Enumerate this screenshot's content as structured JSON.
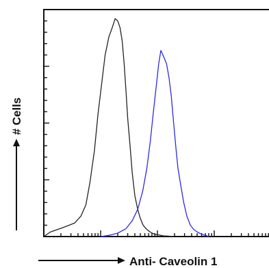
{
  "chart_data": {
    "type": "line",
    "title": "",
    "xlabel": "Anti- Caveolin 1",
    "ylabel": "# Cells",
    "x_scale": "log",
    "xlim": [
      1,
      10000
    ],
    "ylim": [
      0,
      100
    ],
    "grid": false,
    "legend": "none",
    "colors": {
      "axis": "#111111",
      "control": "#222222",
      "sample": "#2a2ae0"
    },
    "series": [
      {
        "color": "#222222",
        "x": [
          1.0,
          1.3,
          1.7,
          2.2,
          2.8,
          3.5,
          4.5,
          5.5,
          6.5,
          7.8,
          9.0,
          10.5,
          12.0,
          14.0,
          16.0,
          18.0,
          20.0,
          22.0,
          24.0,
          26.0,
          28.0,
          30.0,
          33.0,
          36.0,
          40.0,
          45.0,
          50.0,
          56.0,
          63.0,
          70.0,
          80.0,
          90.0,
          100.0,
          115.0,
          130.0,
          150.0,
          170.0,
          200.0
        ],
        "y": [
          0.0,
          2.0,
          3.0,
          4.0,
          5.0,
          6.0,
          9.0,
          14.0,
          24.0,
          38.0,
          54.0,
          68.0,
          80.0,
          88.0,
          92.0,
          96.0,
          95.0,
          92.0,
          86.0,
          76.0,
          64.0,
          52.0,
          40.0,
          28.0,
          18.0,
          12.0,
          8.0,
          5.0,
          3.5,
          2.5,
          1.5,
          1.0,
          0.8,
          0.5,
          0.3,
          0.2,
          0.1,
          0.0
        ]
      },
      {
        "color": "#2a2ae0",
        "x": [
          10.0,
          14.0,
          20.0,
          28.0,
          36.0,
          45.0,
          55.0,
          65.0,
          75.0,
          85.0,
          95.0,
          105.0,
          115.0,
          125.0,
          135.0,
          145.0,
          160.0,
          175.0,
          190.0,
          210.0,
          230.0,
          260.0,
          290.0,
          330.0,
          380.0,
          440.0,
          520.0,
          600.0,
          700.0,
          800.0
        ],
        "y": [
          0.0,
          0.5,
          1.5,
          3.5,
          7.0,
          12.0,
          20.0,
          30.0,
          42.0,
          55.0,
          66.0,
          76.0,
          82.0,
          80.0,
          78.0,
          76.0,
          70.0,
          62.0,
          52.0,
          40.0,
          30.0,
          22.0,
          15.0,
          9.0,
          5.0,
          3.0,
          1.8,
          1.0,
          0.5,
          0.0
        ]
      }
    ]
  }
}
